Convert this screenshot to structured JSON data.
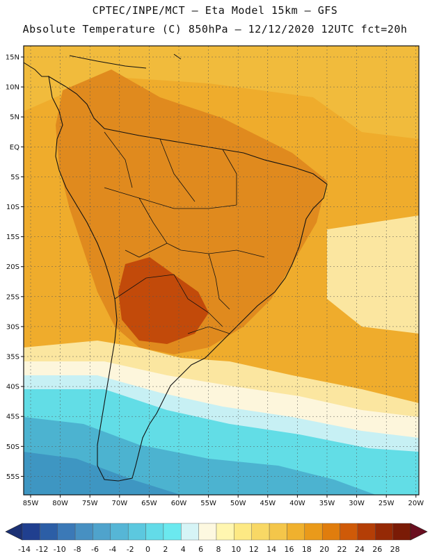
{
  "title_line1": "CPTEC/INPE/MCT –  Eta Model 15km – GFS",
  "title_line2": "Absolute Temperature (C) 850hPa – 12/12/2020 12UTC fct=20h",
  "lat_labels": [
    "15N",
    "10N",
    "5N",
    "EQ",
    "5S",
    "10S",
    "15S",
    "20S",
    "25S",
    "30S",
    "35S",
    "40S",
    "45S",
    "50S",
    "55S"
  ],
  "lon_labels": [
    "85W",
    "80W",
    "75W",
    "70W",
    "65W",
    "60W",
    "55W",
    "50W",
    "45W",
    "40W",
    "35W",
    "30W",
    "25W",
    "20W"
  ],
  "colorbar": {
    "labels": [
      "-14",
      "-12",
      "-10",
      "-8",
      "-6",
      "-4",
      "-2",
      "0",
      "2",
      "4",
      "6",
      "8",
      "10",
      "12",
      "14",
      "16",
      "18",
      "20",
      "22",
      "24",
      "26",
      "28"
    ],
    "colors": [
      "#203f8f",
      "#2c5ea6",
      "#3b79b7",
      "#4790c2",
      "#4fa3cc",
      "#56b6d6",
      "#5cc8df",
      "#63dbe8",
      "#6be9ef",
      "#d6f4f6",
      "#fdf8e0",
      "#fff6b0",
      "#fde984",
      "#f8d865",
      "#f4c64a",
      "#f0b12e",
      "#ea9a1a",
      "#e07d0d",
      "#cf5a08",
      "#b43e06",
      "#952905",
      "#7a1b06"
    ],
    "low_arrow_color": "#1b3074",
    "high_arrow_color": "#6a0f20"
  },
  "map_colors": {
    "hot": "#c24a0a",
    "warm": "#e08a1e",
    "mild": "#efac2c",
    "ocean_warm": "#f1bb3c",
    "cool": "#fbe6a0",
    "pale": "#fdf6dc",
    "cyan_light": "#c7f0f4",
    "cyan": "#62dde6",
    "blue": "#4cb3d0",
    "blue_dark": "#3e96c2"
  }
}
